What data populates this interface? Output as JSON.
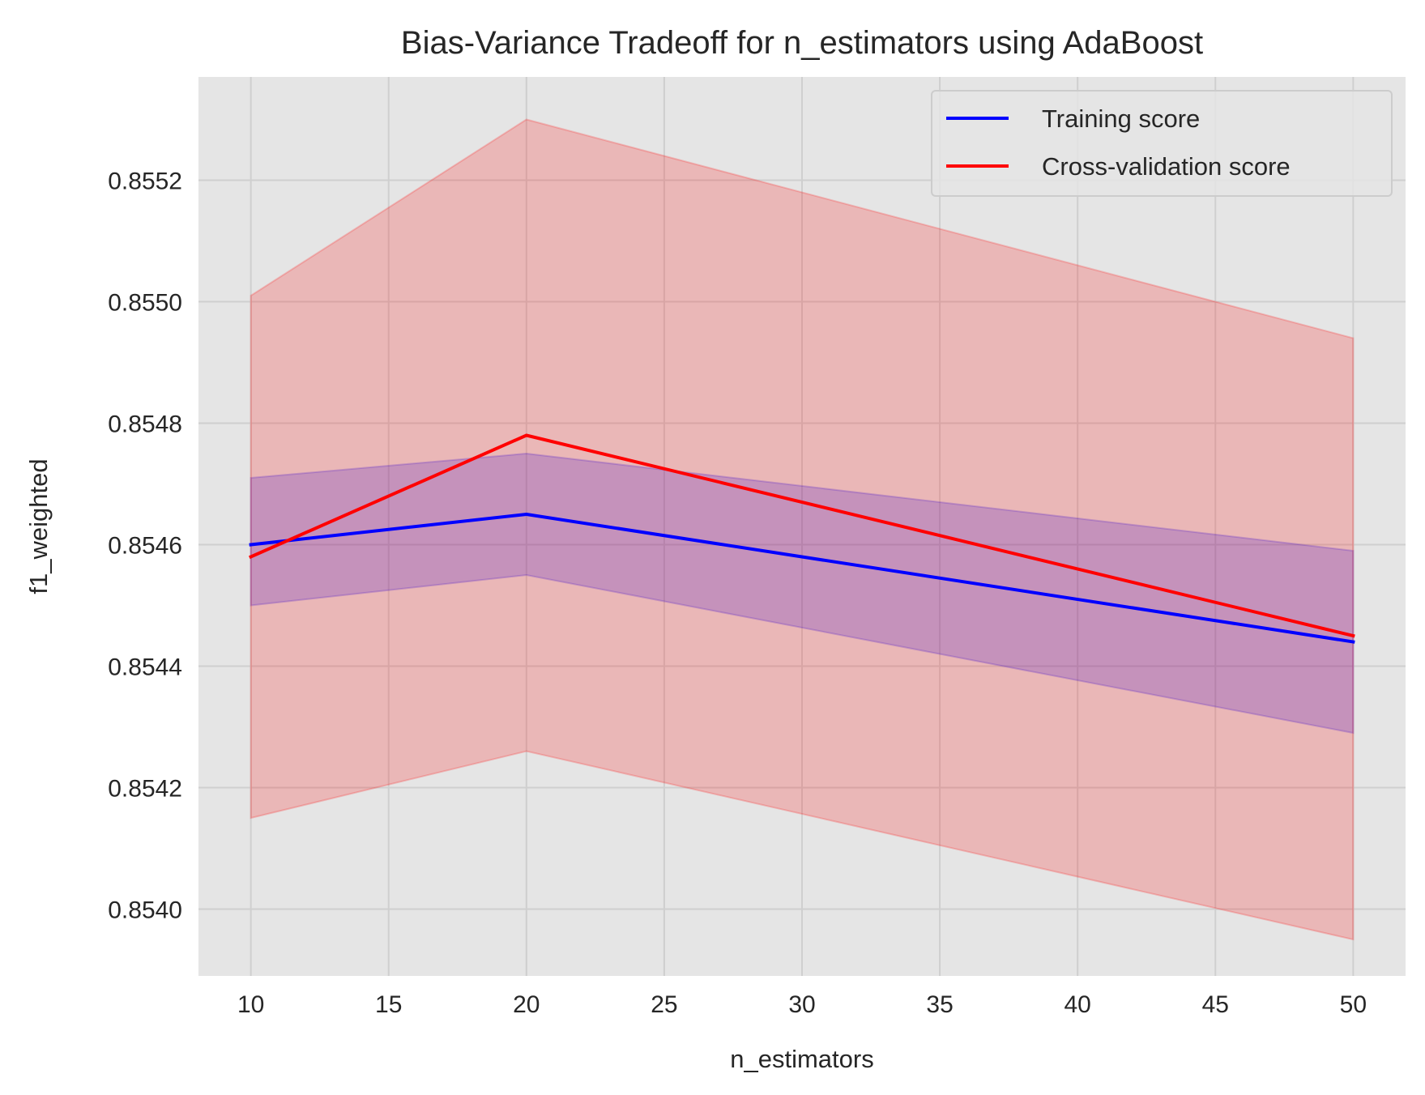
{
  "chart_data": {
    "type": "line",
    "title": "Bias-Variance Tradeoff for n_estimators using AdaBoost",
    "xlabel": "n_estimators",
    "ylabel": "f1_weighted",
    "x": [
      10,
      20,
      50
    ],
    "xlim": [
      8.1,
      51.9
    ],
    "ylim": [
      0.85389,
      0.85537
    ],
    "xticks": [
      10,
      15,
      20,
      25,
      30,
      35,
      40,
      45,
      50
    ],
    "yticks": [
      0.854,
      0.8542,
      0.8544,
      0.8546,
      0.8548,
      0.855,
      0.8552
    ],
    "ytick_labels": [
      "0.8540",
      "0.8542",
      "0.8544",
      "0.8546",
      "0.8548",
      "0.8550",
      "0.8552"
    ],
    "grid": true,
    "legend_position": "top-right",
    "series": [
      {
        "name": "Training score",
        "color": "#0000ff",
        "values": [
          0.8546,
          0.85465,
          0.85444
        ],
        "band_lower": [
          0.8545,
          0.85455,
          0.85429
        ],
        "band_upper": [
          0.85471,
          0.85475,
          0.85459
        ]
      },
      {
        "name": "Cross-validation score",
        "color": "#ff0000",
        "values": [
          0.85458,
          0.85478,
          0.85445
        ],
        "band_lower": [
          0.85415,
          0.85426,
          0.85395
        ],
        "band_upper": [
          0.85501,
          0.8553,
          0.85494
        ]
      }
    ],
    "colors": {
      "plot_background": "#e5e5e5",
      "grid": "#cfcfcf"
    }
  }
}
